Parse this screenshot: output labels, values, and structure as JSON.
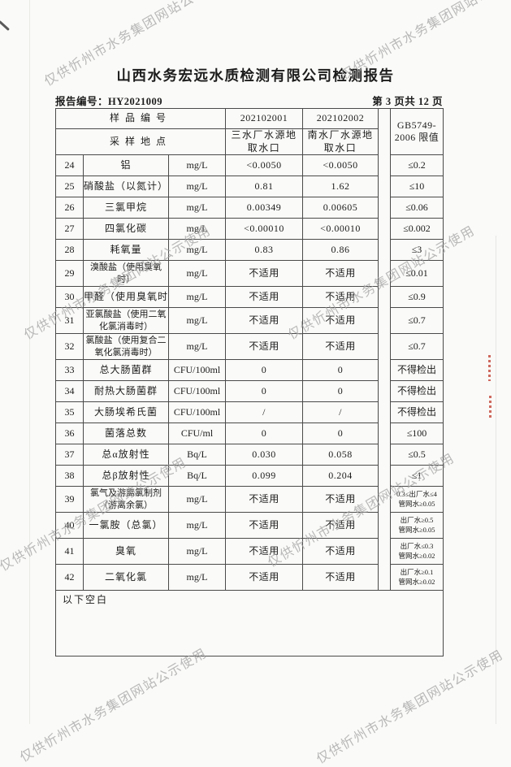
{
  "page": {
    "title": "山西水务宏远水质检测有限公司检测报告",
    "report_no_label": "报告编号：",
    "report_no": "HY2021009",
    "page_indicator": "第 3 页共 12 页"
  },
  "watermark": {
    "text": "仅供忻州市水务集团网站公示使用",
    "color": "#a0a0a0"
  },
  "table": {
    "header": {
      "sample_id_label": "样品编号",
      "sample_ids": [
        "202102001",
        "202102002"
      ],
      "location_label": "采样地点",
      "locations": [
        [
          "三水厂水源地",
          "取水口"
        ],
        [
          "南水厂水源地",
          "取水口"
        ]
      ],
      "limit_header": [
        "GB5749-",
        "2006 限值"
      ]
    },
    "rows": [
      {
        "no": "24",
        "name": "铝",
        "unit": "mg/L",
        "v1": "<0.0050",
        "v2": "<0.0050",
        "limit": "≤0.2"
      },
      {
        "no": "25",
        "name": "硝酸盐（以氮计）",
        "unit": "mg/L",
        "v1": "0.81",
        "v2": "1.62",
        "limit": "≤10"
      },
      {
        "no": "26",
        "name": "三氯甲烷",
        "unit": "mg/L",
        "v1": "0.00349",
        "v2": "0.00605",
        "limit": "≤0.06"
      },
      {
        "no": "27",
        "name": "四氯化碳",
        "unit": "mg/L",
        "v1": "<0.00010",
        "v2": "<0.00010",
        "limit": "≤0.002"
      },
      {
        "no": "28",
        "name": "耗氧量",
        "unit": "mg/L",
        "v1": "0.83",
        "v2": "0.86",
        "limit": "≤3"
      },
      {
        "no": "29",
        "name": [
          "溴酸盐（使用臭氧",
          "时）"
        ],
        "unit": "mg/L",
        "v1": "不适用",
        "v2": "不适用",
        "limit": "≤0.01"
      },
      {
        "no": "30",
        "name": "甲醛（使用臭氧时）",
        "unit": "mg/L",
        "v1": "不适用",
        "v2": "不适用",
        "limit": "≤0.9"
      },
      {
        "no": "31",
        "name": [
          "亚氯酸盐（使用二氧",
          "化氯消毒时）"
        ],
        "unit": "mg/L",
        "v1": "不适用",
        "v2": "不适用",
        "limit": "≤0.7"
      },
      {
        "no": "32",
        "name": [
          "氯酸盐（使用复合二",
          "氧化氯消毒时）"
        ],
        "unit": "mg/L",
        "v1": "不适用",
        "v2": "不适用",
        "limit": "≤0.7"
      },
      {
        "no": "33",
        "name": "总大肠菌群",
        "unit": "CFU/100ml",
        "v1": "0",
        "v2": "0",
        "limit": "不得检出"
      },
      {
        "no": "34",
        "name": "耐热大肠菌群",
        "unit": "CFU/100ml",
        "v1": "0",
        "v2": "0",
        "limit": "不得检出"
      },
      {
        "no": "35",
        "name": "大肠埃希氏菌",
        "unit": "CFU/100ml",
        "v1": "/",
        "v2": "/",
        "limit": "不得检出"
      },
      {
        "no": "36",
        "name": "菌落总数",
        "unit": "CFU/ml",
        "v1": "0",
        "v2": "0",
        "limit": "≤100"
      },
      {
        "no": "37",
        "name": "总α放射性",
        "unit": "Bq/L",
        "v1": "0.030",
        "v2": "0.058",
        "limit": "≤0.5"
      },
      {
        "no": "38",
        "name": "总β放射性",
        "unit": "Bq/L",
        "v1": "0.099",
        "v2": "0.204",
        "limit": "≤1"
      },
      {
        "no": "39",
        "name": [
          "氯气及游离氯制剂",
          "（游离余氯）"
        ],
        "unit": "mg/L",
        "v1": "不适用",
        "v2": "不适用",
        "limit": [
          "0.3≤出厂水≤4",
          "管网水≥0.05"
        ]
      },
      {
        "no": "40",
        "name": "一氯胺（总氯）",
        "unit": "mg/L",
        "v1": "不适用",
        "v2": "不适用",
        "limit": [
          "出厂水≥0.5",
          "管网水≥0.05"
        ]
      },
      {
        "no": "41",
        "name": "臭氧",
        "unit": "mg/L",
        "v1": "不适用",
        "v2": "不适用",
        "limit": [
          "出厂水≤0.3",
          "管网水≥0.02"
        ]
      },
      {
        "no": "42",
        "name": "二氧化氯",
        "unit": "mg/L",
        "v1": "不适用",
        "v2": "不适用",
        "limit": [
          "出厂水≥0.1",
          "管网水≥0.02"
        ]
      }
    ],
    "footer_note": "以下空白"
  }
}
